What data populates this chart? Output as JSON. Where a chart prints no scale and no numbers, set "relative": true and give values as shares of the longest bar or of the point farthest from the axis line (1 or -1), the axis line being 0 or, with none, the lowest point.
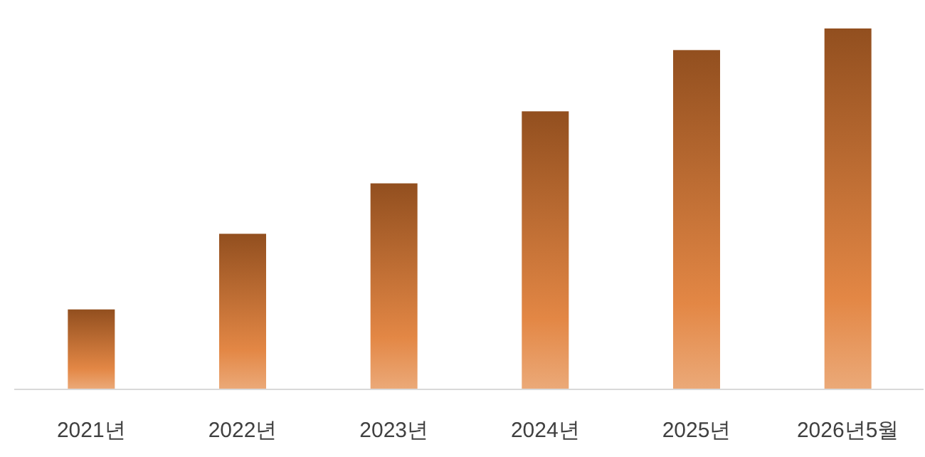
{
  "chart_data": {
    "type": "bar",
    "relative": true,
    "categories": [
      "2021년",
      "2022년",
      "2023년",
      "2024년",
      "2025년",
      "2026년5월"
    ],
    "values": [
      0.22,
      0.43,
      0.57,
      0.77,
      0.94,
      1
    ],
    "color": "#e07a30"
  }
}
